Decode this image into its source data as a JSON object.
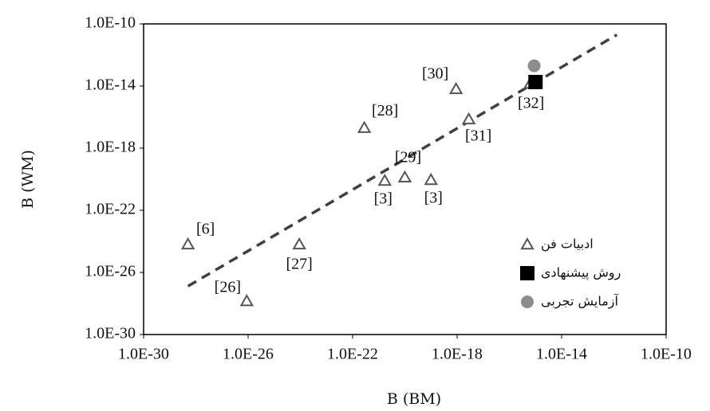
{
  "chart_data": {
    "type": "scatter",
    "x_label": "B (BM)",
    "y_label": "B (WM)",
    "log_x": true,
    "log_y": true,
    "xlim": [
      1e-30,
      1e-10
    ],
    "ylim": [
      1e-30,
      1e-10
    ],
    "xticks": [
      {
        "value": 1e-30,
        "label": "1.0E-30"
      },
      {
        "value": 1e-26,
        "label": "1.0E-26"
      },
      {
        "value": 1e-22,
        "label": "1.0E-22"
      },
      {
        "value": 1e-18,
        "label": "1.0E-18"
      },
      {
        "value": 1e-14,
        "label": "1.0E-14"
      },
      {
        "value": 1e-10,
        "label": "1.0E-10"
      }
    ],
    "yticks": [
      {
        "value": 1e-30,
        "label": "1.0E-30"
      },
      {
        "value": 1e-26,
        "label": "1.0E-26"
      },
      {
        "value": 1e-22,
        "label": "1.0E-22"
      },
      {
        "value": 1e-18,
        "label": "1.0E-18"
      },
      {
        "value": 1e-14,
        "label": "1.0E-14"
      },
      {
        "value": 1e-10,
        "label": "1.0E-10"
      }
    ],
    "grid": false,
    "legend": "lower right",
    "series": [
      {
        "name": "ادبیات فن",
        "marker": "triangle",
        "color": "#555555",
        "x": [
          5e-29,
          8.9e-27,
          9.1e-25,
          2.8e-22,
          1e-20,
          1.7e-21,
          1e-19,
          9.1e-19,
          2.8e-18,
          6.3e-16
        ],
        "values": [
          6.3e-25,
          1.4e-28,
          6.3e-25,
          2e-17,
          1.3e-20,
          7.9e-21,
          8.9e-21,
          6.3e-15,
          7.1e-17,
          1.4e-14
        ],
        "labels": [
          "[6]",
          "[26]",
          "[27]",
          "[28]",
          "[29]",
          "[3]",
          "[3]",
          "[30]",
          "[31]",
          "[32]"
        ]
      },
      {
        "name": "روش پیشنهادی",
        "marker": "square",
        "color": "#000000",
        "x": [
          1e-15
        ],
        "values": [
          1.8e-14
        ]
      },
      {
        "name": "آزمایش تجربی",
        "marker": "circle",
        "color": "#8c8c8c",
        "x": [
          8.9e-16
        ],
        "values": [
          2e-13
        ]
      }
    ],
    "trendline": {
      "color": "#404040",
      "x": [
        5e-29,
        1.3e-12
      ],
      "values": [
        1.3e-27,
        2e-11
      ]
    }
  }
}
